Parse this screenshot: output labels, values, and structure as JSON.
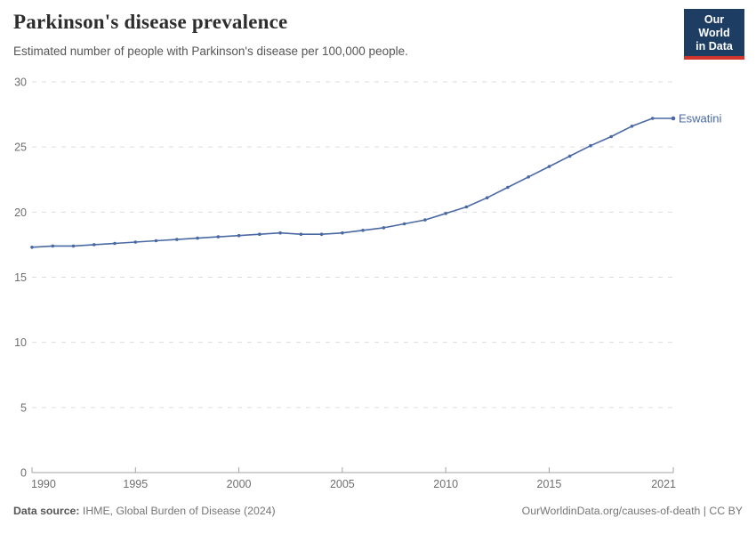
{
  "header": {
    "title": "Parkinson's disease prevalence",
    "subtitle": "Estimated number of people with Parkinson's disease per 100,000 people."
  },
  "logo": {
    "line1": "Our World",
    "line2": "in Data"
  },
  "footer": {
    "source_label": "Data source:",
    "source_text": "IHME, Global Burden of Disease (2024)",
    "rights": "OurWorldinData.org/causes-of-death | CC BY"
  },
  "colors": {
    "series_blue": "#4a69a3",
    "gridline": "#dddddd",
    "axis": "#a3a3a3",
    "tick_label": "#6e6e6e",
    "logo_bg": "#1d3d63",
    "logo_red": "#d1352b"
  },
  "chart_data": {
    "type": "line",
    "title": "Parkinson's disease prevalence",
    "subtitle": "Estimated number of people with Parkinson's disease per 100,000 people.",
    "xlabel": "",
    "ylabel": "",
    "xlim": [
      1990,
      2021
    ],
    "ylim": [
      0,
      30
    ],
    "x_ticks": [
      1990,
      1995,
      2000,
      2005,
      2010,
      2015,
      2021
    ],
    "y_ticks": [
      0,
      5,
      10,
      15,
      20,
      25,
      30
    ],
    "grid": "horizontal-dashed",
    "legend": "end-of-line-label",
    "series": [
      {
        "name": "Eswatini",
        "color": "#4a69a3",
        "x": [
          1990,
          1991,
          1992,
          1993,
          1994,
          1995,
          1996,
          1997,
          1998,
          1999,
          2000,
          2001,
          2002,
          2003,
          2004,
          2005,
          2006,
          2007,
          2008,
          2009,
          2010,
          2011,
          2012,
          2013,
          2014,
          2015,
          2016,
          2017,
          2018,
          2019,
          2020,
          2021
        ],
        "values": [
          17.3,
          17.4,
          17.4,
          17.5,
          17.6,
          17.7,
          17.8,
          17.9,
          18.0,
          18.1,
          18.2,
          18.3,
          18.4,
          18.3,
          18.3,
          18.4,
          18.6,
          18.8,
          19.1,
          19.4,
          19.9,
          20.4,
          21.1,
          21.9,
          22.7,
          23.5,
          24.3,
          25.1,
          25.8,
          26.6,
          27.2,
          27.2
        ]
      }
    ]
  }
}
